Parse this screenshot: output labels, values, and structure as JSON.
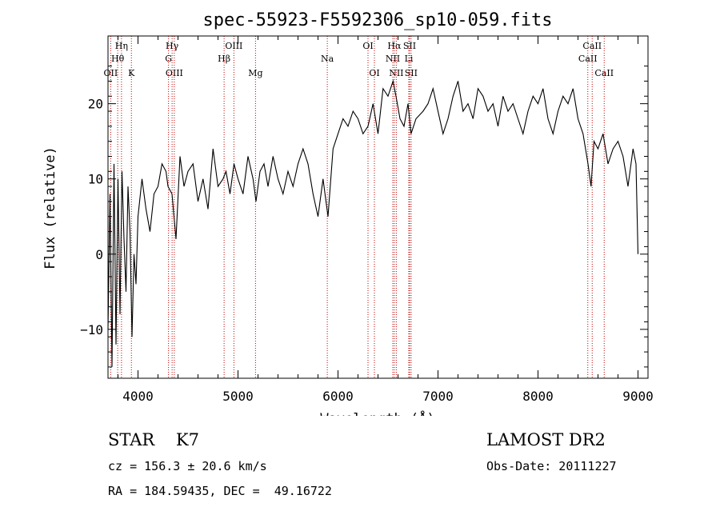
{
  "chart_data": {
    "type": "line",
    "title": "spec-55923-F5592306_sp10-059.fits",
    "xlabel": "Wavelength (Å)",
    "ylabel": "Flux (relative)",
    "xlim": [
      3700,
      9100
    ],
    "ylim": [
      -16.5,
      29
    ],
    "xticks": [
      4000,
      5000,
      6000,
      7000,
      8000,
      9000
    ],
    "yticks": [
      -10,
      0,
      10,
      20
    ],
    "grid": false,
    "colors": {
      "line": "#000000",
      "marker": "#c00000",
      "background": "#ffffff"
    },
    "series": [
      {
        "x": [
          3700,
          3720,
          3740,
          3760,
          3780,
          3800,
          3820,
          3840,
          3860,
          3880,
          3900,
          3920,
          3940,
          3960,
          3980,
          4000,
          4040,
          4080,
          4120,
          4160,
          4200,
          4240,
          4280,
          4300,
          4340,
          4380,
          4420,
          4460,
          4500,
          4550,
          4600,
          4650,
          4700,
          4750,
          4800,
          4850,
          4880,
          4920,
          4960,
          5000,
          5050,
          5100,
          5150,
          5180,
          5220,
          5260,
          5300,
          5350,
          5400,
          5450,
          5500,
          5550,
          5600,
          5650,
          5700,
          5750,
          5800,
          5850,
          5880,
          5900,
          5950,
          6000,
          6050,
          6100,
          6150,
          6200,
          6250,
          6300,
          6350,
          6400,
          6450,
          6500,
          6550,
          6580,
          6620,
          6660,
          6700,
          6730,
          6780,
          6850,
          6900,
          6950,
          7000,
          7050,
          7100,
          7150,
          7200,
          7250,
          7300,
          7350,
          7400,
          7450,
          7500,
          7550,
          7600,
          7650,
          7700,
          7750,
          7800,
          7850,
          7900,
          7950,
          8000,
          8050,
          8100,
          8150,
          8200,
          8250,
          8300,
          8350,
          8400,
          8450,
          8500,
          8530,
          8560,
          8600,
          8650,
          8700,
          8750,
          8800,
          8850,
          8900,
          8950,
          8980,
          9000
        ],
        "y": [
          -10,
          8,
          -15,
          12,
          -12,
          10,
          -8,
          11,
          2,
          -5,
          9,
          3,
          -11,
          0,
          -4,
          5,
          10,
          6,
          3,
          8,
          9,
          12,
          11,
          9,
          8,
          2,
          13,
          9,
          11,
          12,
          7,
          10,
          6,
          14,
          9,
          10,
          11,
          8,
          12,
          10,
          8,
          13,
          10,
          7,
          11,
          12,
          9,
          13,
          10,
          8,
          11,
          9,
          12,
          14,
          12,
          8,
          5,
          10,
          7,
          5,
          14,
          16,
          18,
          17,
          19,
          18,
          16,
          17,
          20,
          16,
          22,
          21,
          23,
          21,
          18,
          17,
          20,
          16,
          18,
          19,
          20,
          22,
          19,
          16,
          18,
          21,
          23,
          19,
          20,
          18,
          22,
          21,
          19,
          20,
          17,
          21,
          19,
          20,
          18,
          16,
          19,
          21,
          20,
          22,
          18,
          16,
          19,
          21,
          20,
          22,
          18,
          16,
          12,
          9,
          15,
          14,
          16,
          12,
          14,
          15,
          13,
          9,
          14,
          12,
          0
        ]
      }
    ],
    "line_markers": [
      {
        "label": "Hη",
        "x": 3835,
        "row": 1
      },
      {
        "label": "Hθ",
        "x": 3797,
        "row": 2
      },
      {
        "label": "OII",
        "x": 3727,
        "row": 3
      },
      {
        "label": "K",
        "x": 3934,
        "row": 3
      },
      {
        "label": "Hγ",
        "x": 4341,
        "row": 1
      },
      {
        "label": "G",
        "x": 4305,
        "row": 2
      },
      {
        "label": "OIII",
        "x": 4363,
        "row": 3
      },
      {
        "label": "OIII",
        "x": 4959,
        "row": 1
      },
      {
        "label": "Hβ",
        "x": 4861,
        "row": 2
      },
      {
        "label": "Mg",
        "x": 5175,
        "row": 3
      },
      {
        "label": "Na",
        "x": 5893,
        "row": 2
      },
      {
        "label": "OI",
        "x": 6300,
        "row": 1
      },
      {
        "label": "OI",
        "x": 6364,
        "row": 3
      },
      {
        "label": "Hα",
        "x": 6563,
        "row": 1
      },
      {
        "label": "SII",
        "x": 6716,
        "row": 1
      },
      {
        "label": "NII",
        "x": 6548,
        "row": 2
      },
      {
        "label": "Li",
        "x": 6708,
        "row": 2
      },
      {
        "label": "NII",
        "x": 6583,
        "row": 3
      },
      {
        "label": "SII",
        "x": 6731,
        "row": 3
      },
      {
        "label": "CaII",
        "x": 8542,
        "row": 1
      },
      {
        "label": "CaII",
        "x": 8498,
        "row": 2
      },
      {
        "label": "CaII",
        "x": 8662,
        "row": 3
      }
    ]
  },
  "info": {
    "class_label": "STAR    K7",
    "survey_label": "LAMOST DR2",
    "cz_label": "cz = 156.3 ± 20.6 km/s",
    "obs_date_label": "Obs-Date: 20111227",
    "coords_label": "RA = 184.59435, DEC =  49.16722"
  }
}
